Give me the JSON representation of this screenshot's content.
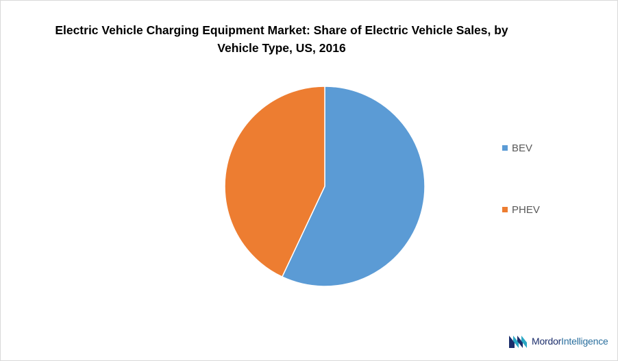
{
  "chart_data": {
    "type": "pie",
    "title": "Electric Vehicle Charging Equipment Market: Share of Electric Vehicle Sales, by Vehicle Type, US, 2016",
    "categories": [
      "BEV",
      "PHEV"
    ],
    "values": [
      57,
      43
    ],
    "colors": [
      "#5b9bd5",
      "#ed7d31"
    ],
    "start_angle_deg": 0,
    "direction": "clockwise",
    "legend_position": "right"
  },
  "brand": {
    "name_part1": "Mordor",
    "name_part2": "Intelligence",
    "colors": [
      "#1b2d6b",
      "#2aa7c4"
    ]
  }
}
